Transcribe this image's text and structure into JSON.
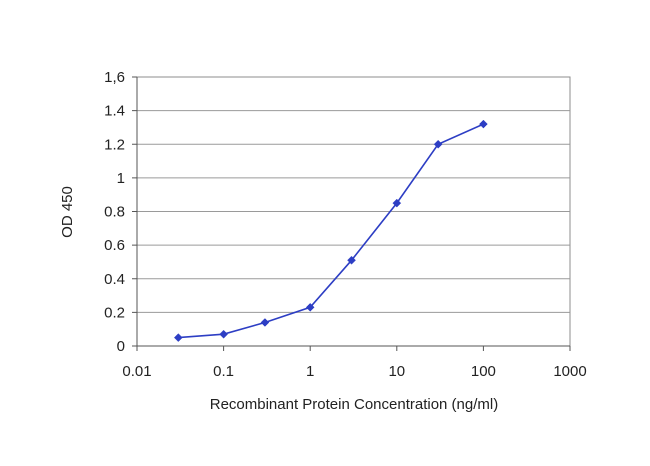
{
  "chart_data": {
    "type": "line",
    "title": "",
    "xlabel": "Recombinant Protein Concentration (ng/ml)",
    "ylabel": "OD 450",
    "x_scale": "log",
    "xlim": [
      0.01,
      1000
    ],
    "ylim": [
      0,
      1.6
    ],
    "x_ticks": [
      "0.01",
      "0.1",
      "1",
      "10",
      "100",
      "1000"
    ],
    "y_ticks": [
      "0",
      "0.2",
      "0.4",
      "0.6",
      "0.8",
      "1",
      "1.2",
      "1.4",
      "1,6"
    ],
    "grid": true,
    "legend": "none",
    "series": [
      {
        "color": "#2d3ec4",
        "x": [
          0.03,
          0.1,
          0.3,
          1,
          3,
          10,
          30,
          100
        ],
        "y": [
          0.05,
          0.07,
          0.14,
          0.23,
          0.51,
          0.85,
          1.2,
          1.32
        ]
      }
    ]
  }
}
